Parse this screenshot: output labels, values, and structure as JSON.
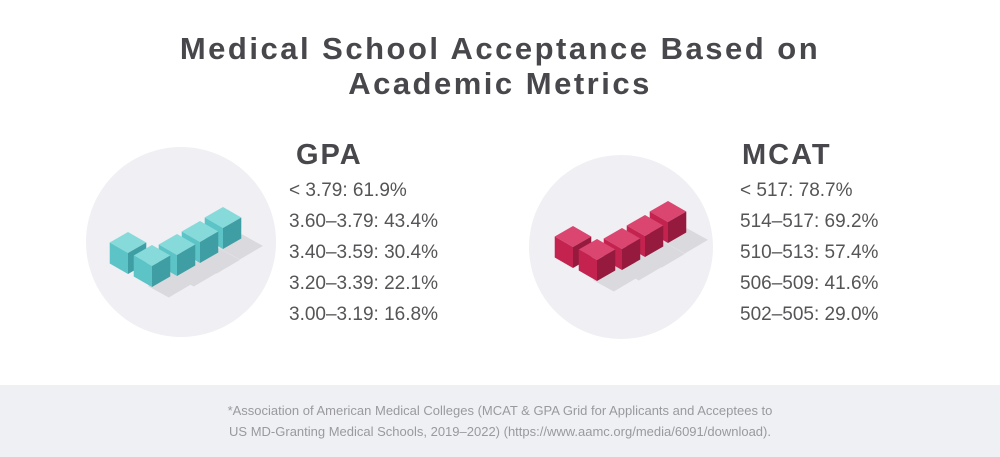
{
  "title": {
    "line1": "Medical School Acceptance Based on",
    "line2": "Academic Metrics"
  },
  "gpa": {
    "heading": "GPA",
    "items": [
      "< 3.79: 61.9%",
      "3.60–3.79: 43.4%",
      "3.40–3.59: 30.4%",
      "3.20–3.39: 22.1%",
      "3.00–3.19: 16.8%"
    ],
    "icon": "checkmark-cubes-icon",
    "color": "#5cc3c6"
  },
  "mcat": {
    "heading": "MCAT",
    "items": [
      "< 517: 78.7%",
      "514–517: 69.2%",
      "510–513: 57.4%",
      "506–509: 41.6%",
      "502–505: 29.0%"
    ],
    "icon": "checkmark-cubes-icon",
    "color": "#c4234f"
  },
  "footer": {
    "line1": "*Association of American Medical Colleges (MCAT & GPA Grid for Applicants and Acceptees to",
    "line2": "US MD-Granting Medical Schools, 2019–2022) (https://www.aamc.org/media/6091/download)."
  }
}
